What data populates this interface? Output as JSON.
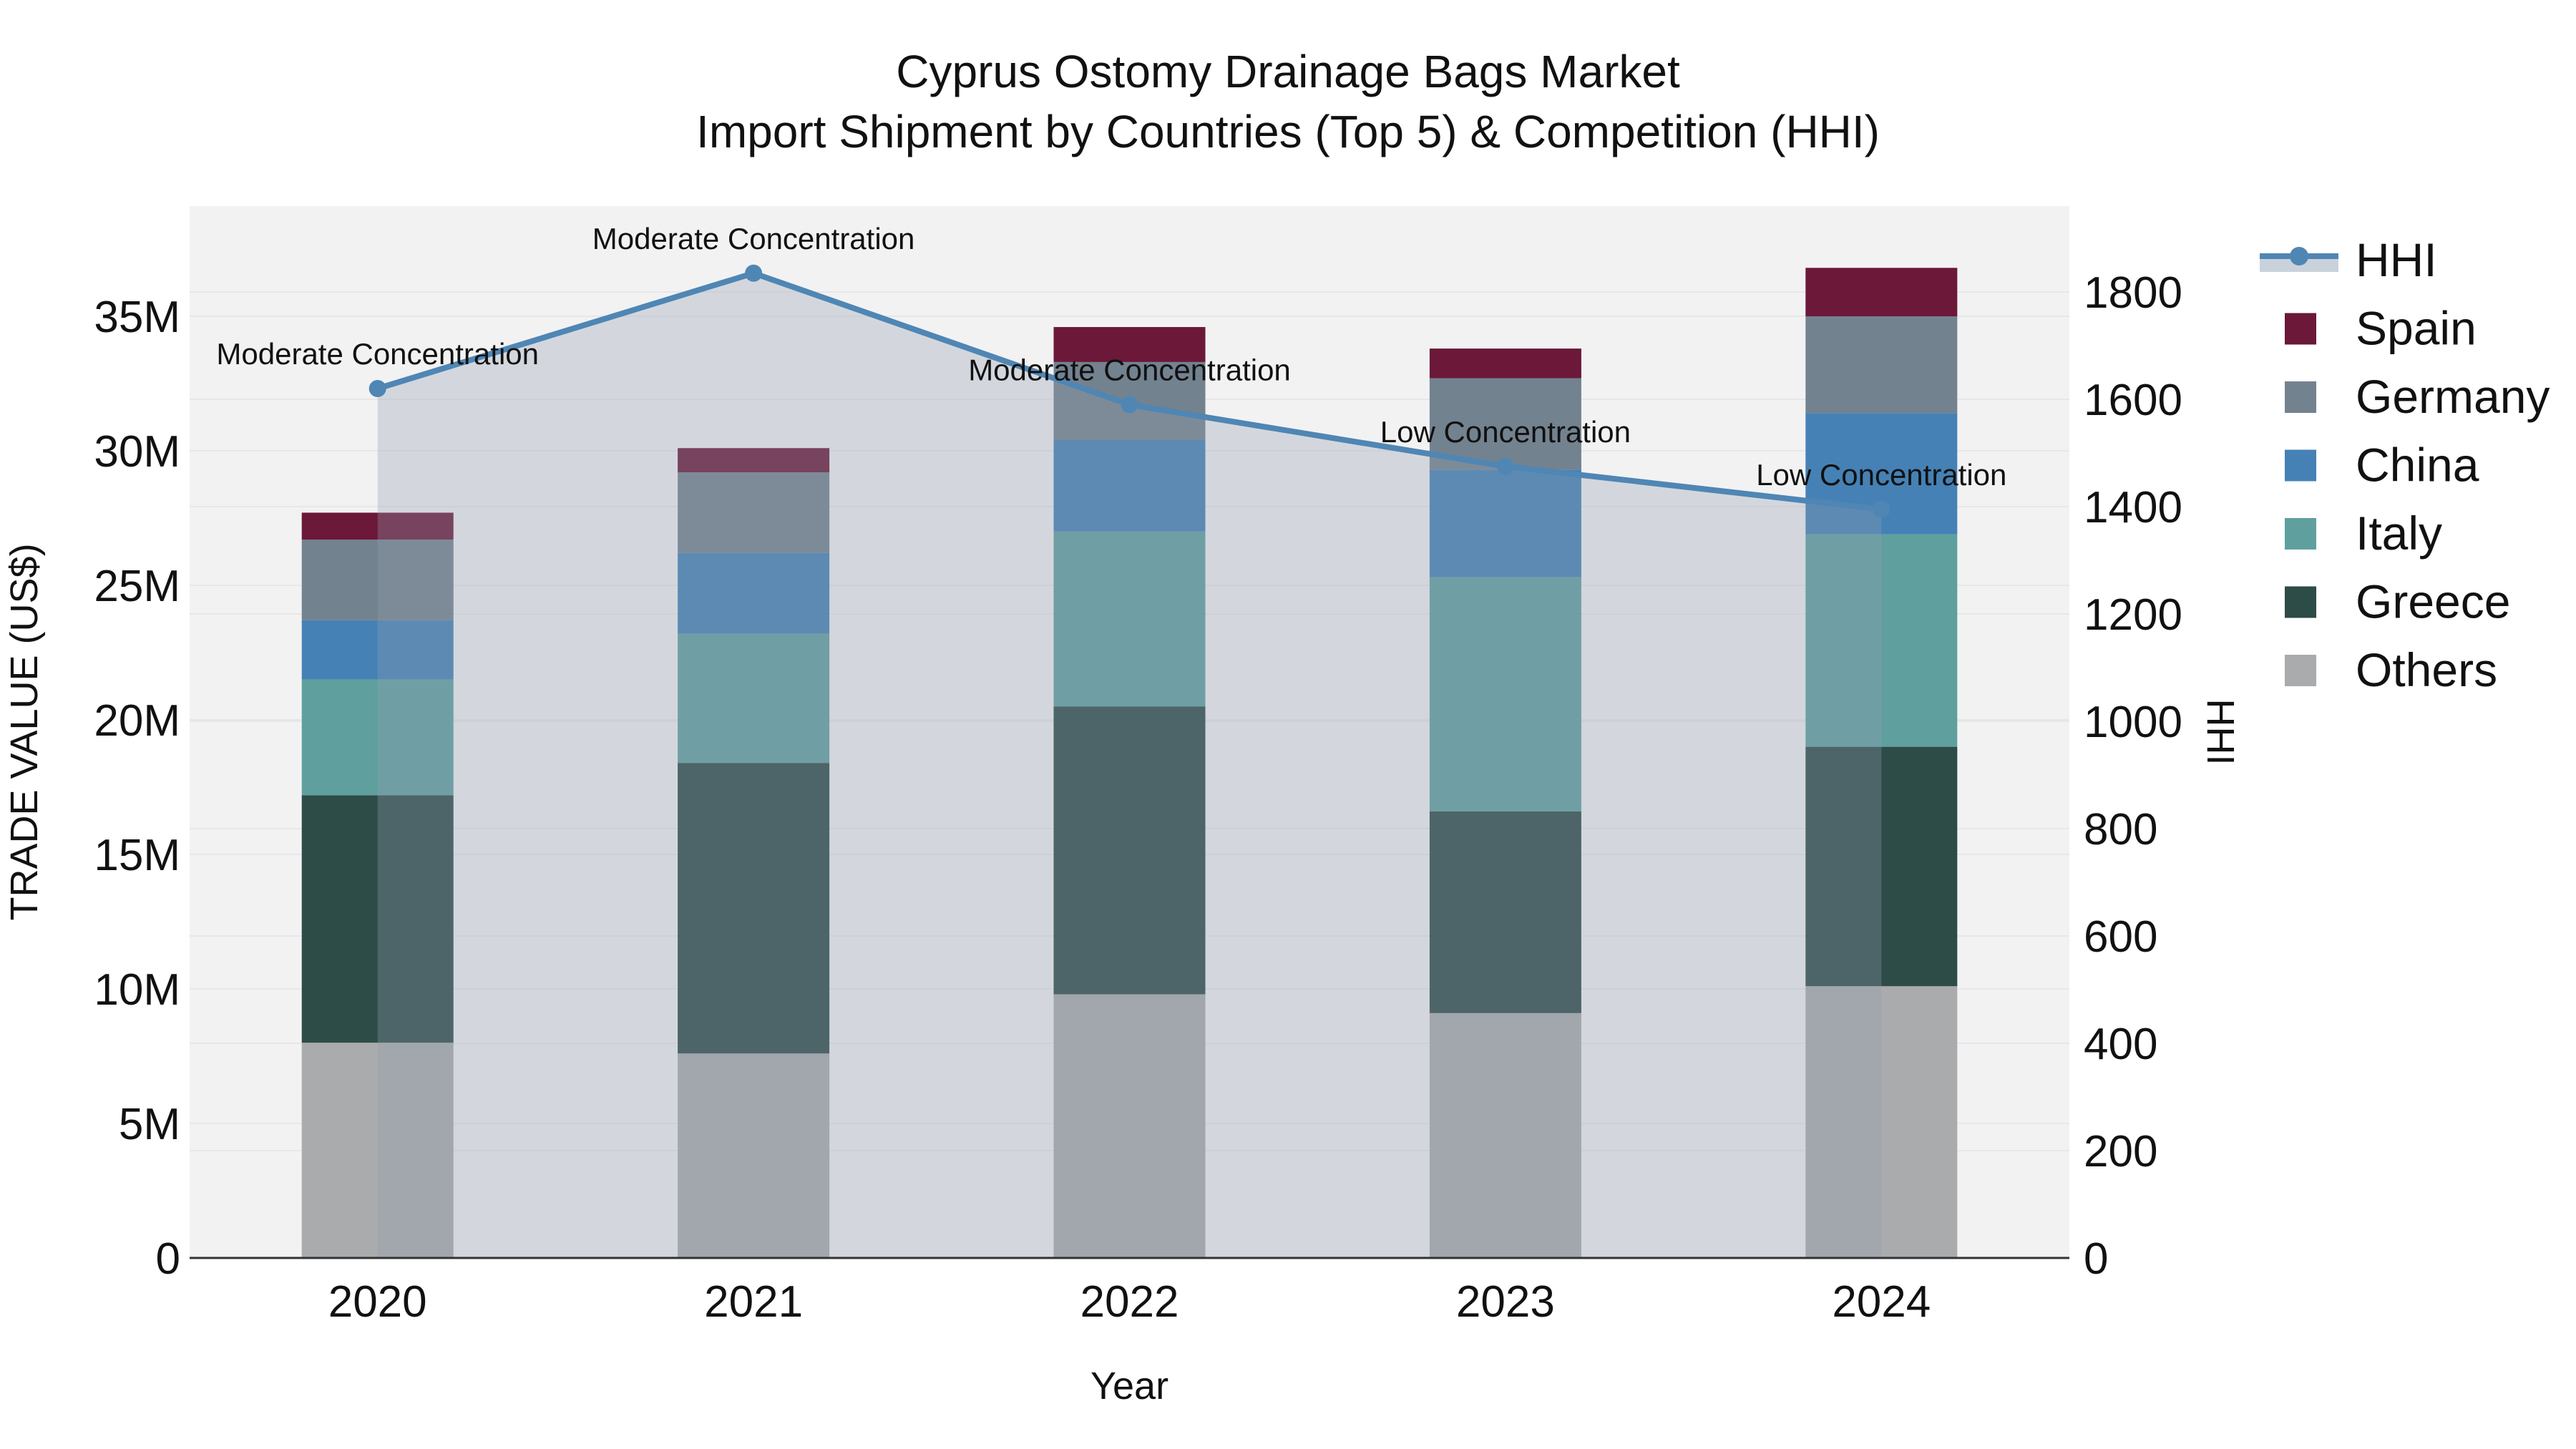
{
  "title": {
    "line1": "Cyprus Ostomy Drainage Bags Market",
    "line2": "Import Shipment by Countries (Top 5) & Competition (HHI)"
  },
  "axes": {
    "x": {
      "label": "Year",
      "ticks": [
        "2020",
        "2021",
        "2022",
        "2023",
        "2024"
      ]
    },
    "y_left": {
      "label": "TRADE VALUE (US$)",
      "tick_labels": [
        "0",
        "5M",
        "10M",
        "15M",
        "20M",
        "25M",
        "30M",
        "35M"
      ],
      "tick_values": [
        0,
        5,
        10,
        15,
        20,
        25,
        30,
        35
      ]
    },
    "y_right": {
      "label": "HHI",
      "tick_labels": [
        "0",
        "200",
        "400",
        "600",
        "800",
        "1000",
        "1200",
        "1400",
        "1600",
        "1800"
      ],
      "tick_values": [
        0,
        200,
        400,
        600,
        800,
        1000,
        1200,
        1400,
        1600,
        1800
      ]
    }
  },
  "legend": {
    "items": [
      {
        "label": "HHI",
        "type": "line",
        "color": "#4f86b4",
        "band_color": "#c9d1db"
      },
      {
        "label": "Spain",
        "type": "swatch",
        "color": "#6b1839"
      },
      {
        "label": "Germany",
        "type": "swatch",
        "color": "#73828f"
      },
      {
        "label": "China",
        "type": "swatch",
        "color": "#4581b5"
      },
      {
        "label": "Italy",
        "type": "swatch",
        "color": "#5fa09f"
      },
      {
        "label": "Greece",
        "type": "swatch",
        "color": "#2d4b47"
      },
      {
        "label": "Others",
        "type": "swatch",
        "color": "#aaabad"
      }
    ]
  },
  "chart_data": {
    "type": "bar",
    "subtype": "stacked bars (left axis, trade value) + HHI line with shaded area (right axis)",
    "categories": [
      "2020",
      "2021",
      "2022",
      "2023",
      "2024"
    ],
    "bar_unit": "million US$",
    "series": [
      {
        "name": "Others",
        "color": "#aaabad",
        "values": [
          8.0,
          7.6,
          9.8,
          9.1,
          10.1
        ]
      },
      {
        "name": "Greece",
        "color": "#2d4b47",
        "values": [
          9.2,
          10.8,
          10.7,
          7.5,
          8.9
        ]
      },
      {
        "name": "Italy",
        "color": "#5fa09f",
        "values": [
          4.3,
          4.8,
          6.5,
          8.7,
          7.9
        ]
      },
      {
        "name": "China",
        "color": "#4581b5",
        "values": [
          2.2,
          3.0,
          3.4,
          4.0,
          4.5
        ]
      },
      {
        "name": "Germany",
        "color": "#73828f",
        "values": [
          3.0,
          3.0,
          2.9,
          3.4,
          3.6
        ]
      },
      {
        "name": "Spain",
        "color": "#6b1839",
        "values": [
          1.0,
          0.9,
          1.3,
          1.1,
          1.8
        ]
      }
    ],
    "bar_totals": [
      27.7,
      30.1,
      34.6,
      33.8,
      36.8
    ],
    "line_series": {
      "name": "HHI",
      "color": "#4f86b4",
      "area_fill": "rgba(145,158,175,0.32)",
      "values": [
        1620,
        1835,
        1590,
        1475,
        1395
      ]
    },
    "annotations": [
      {
        "category": "2020",
        "text": "Moderate Concentration"
      },
      {
        "category": "2021",
        "text": "Moderate Concentration"
      },
      {
        "category": "2022",
        "text": "Moderate Concentration"
      },
      {
        "category": "2023",
        "text": "Low Concentration"
      },
      {
        "category": "2024",
        "text": "Low Concentration"
      }
    ],
    "xlabel": "Year",
    "ylabel_left": "TRADE VALUE (US$)",
    "ylabel_right": "HHI",
    "ylim_left": [
      0,
      39.05
    ],
    "ylim_right": [
      0,
      1956
    ],
    "grid": true,
    "legend_position": "right"
  },
  "style": {
    "plot_bg": "#f2f2f3",
    "grid_color": "#e7e7ea",
    "axis_line_color": "#333333",
    "text_color": "#111111"
  }
}
